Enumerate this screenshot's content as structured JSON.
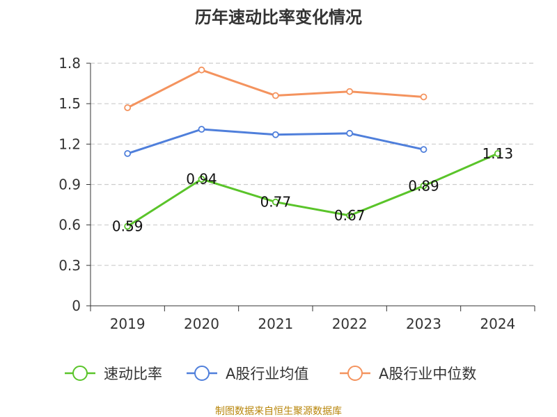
{
  "chart_data": {
    "type": "line",
    "title": "历年速动比率变化情况",
    "categories": [
      "2019",
      "2020",
      "2021",
      "2022",
      "2023",
      "2024"
    ],
    "ylim": [
      0,
      1.8
    ],
    "yticks": [
      "0",
      "0.3",
      "0.6",
      "0.9",
      "1.2",
      "1.5",
      "1.8"
    ],
    "grid": true,
    "legend_position": "bottom",
    "series": [
      {
        "name": "速动比率",
        "color": "#5ac42a",
        "values": [
          0.59,
          0.94,
          0.77,
          0.67,
          0.89,
          1.13
        ],
        "labels": [
          "0.59",
          "0.94",
          "0.77",
          "0.67",
          "0.89",
          "1.13"
        ]
      },
      {
        "name": "A股行业均值",
        "color": "#4f7fdb",
        "values": [
          1.13,
          1.31,
          1.27,
          1.28,
          1.16,
          null
        ]
      },
      {
        "name": "A股行业中位数",
        "color": "#f4935e",
        "values": [
          1.47,
          1.75,
          1.56,
          1.59,
          1.55,
          null
        ]
      }
    ],
    "source": "制图数据来自恒生聚源数据库"
  }
}
